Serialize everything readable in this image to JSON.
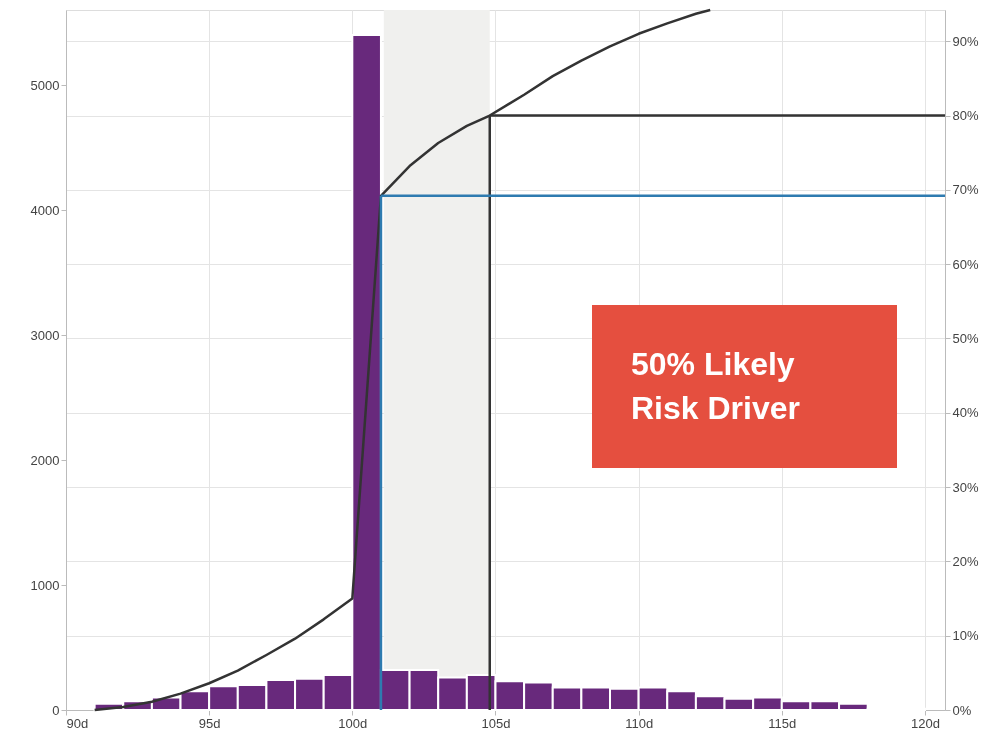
{
  "chart_data": {
    "type": "histogram",
    "bins": [
      91,
      92,
      93,
      94,
      95,
      96,
      97,
      98,
      99,
      100,
      101,
      102,
      103,
      104,
      105,
      106,
      107,
      108,
      109,
      110,
      111,
      112,
      113,
      114,
      115,
      116,
      117,
      118,
      119,
      120
    ],
    "values": [
      50,
      70,
      100,
      150,
      190,
      200,
      240,
      250,
      280,
      5400,
      320,
      320,
      260,
      280,
      230,
      220,
      180,
      180,
      170,
      180,
      150,
      110,
      90,
      100,
      70,
      70,
      50,
      10,
      10
    ],
    "color": "#68297c",
    "series": [
      {
        "type": "line",
        "axis": "y2",
        "color": "#333333",
        "x": [
          91,
          92,
          93,
          94,
          95,
          96,
          97,
          98,
          99,
          100,
          101,
          102,
          103,
          104,
          104.8,
          106,
          107,
          108,
          109,
          110,
          111,
          112,
          112.5
        ],
        "values": [
          0,
          0.4,
          1.1,
          2.2,
          3.6,
          5.3,
          7.4,
          9.6,
          12.2,
          15,
          69.2,
          73.2,
          76.3,
          78.6,
          80,
          82.8,
          85.3,
          87.4,
          89.3,
          91,
          92.4,
          93.7,
          94.2
        ]
      }
    ],
    "xlim": [
      90,
      120.7
    ],
    "xticks": [
      {
        "value": 90,
        "label": "90d"
      },
      {
        "value": 95,
        "label": "95d"
      },
      {
        "value": 100,
        "label": "100d"
      },
      {
        "value": 105,
        "label": "105d"
      },
      {
        "value": 110,
        "label": "110d"
      },
      {
        "value": 115,
        "label": "115d"
      },
      {
        "value": 120,
        "label": "120d"
      }
    ],
    "ylim": [
      0,
      5600
    ],
    "yticks": [
      0,
      1000,
      2000,
      3000,
      4000,
      5000
    ],
    "y2lim": [
      0,
      94.2
    ],
    "y2ticks": [
      {
        "value": 0,
        "label": "0%"
      },
      {
        "value": 10,
        "label": "10%"
      },
      {
        "value": 20,
        "label": "20%"
      },
      {
        "value": 30,
        "label": "30%"
      },
      {
        "value": 40,
        "label": "40%"
      },
      {
        "value": 50,
        "label": "50%"
      },
      {
        "value": 60,
        "label": "60%"
      },
      {
        "value": 70,
        "label": "70%"
      },
      {
        "value": 80,
        "label": "80%"
      },
      {
        "value": 90,
        "label": "90%"
      }
    ],
    "bands": [
      {
        "axis": "x",
        "from": 101.1,
        "to": 104.8,
        "color": "#f0f0ee"
      }
    ],
    "ref_lines": [
      {
        "axis": "y2",
        "value": 80,
        "color": "#333333"
      },
      {
        "axis": "x",
        "value": 104.8,
        "color": "#333333"
      },
      {
        "axis": "y2",
        "value": 69.2,
        "color": "#2e7bb0"
      },
      {
        "axis": "x",
        "value": 101,
        "color": "#2e7bb0"
      }
    ],
    "annotations": [
      "50% Likely Risk Driver"
    ],
    "grid": true
  }
}
